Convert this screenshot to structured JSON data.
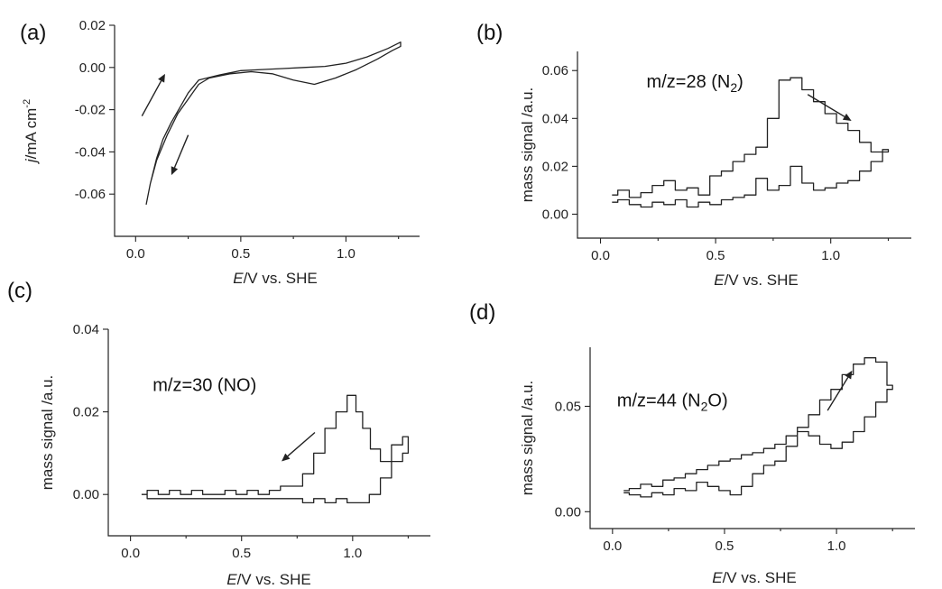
{
  "chart_data": [
    {
      "id": "a",
      "type": "line",
      "panel_label": "(a)",
      "title": "",
      "xlabel": "E/V vs. SHE",
      "ylabel": "j/mA cm-2",
      "xlim": [
        -0.1,
        1.35
      ],
      "ylim": [
        -0.08,
        0.02
      ],
      "xticks": [
        0.0,
        0.5,
        1.0
      ],
      "yticks": [
        0.02,
        0.0,
        -0.02,
        -0.04,
        -0.06
      ],
      "xtick_labels": [
        "0.0",
        "0.5",
        "1.0"
      ],
      "ytick_labels": [
        "0.02",
        "0.00",
        "-0.02",
        "-0.04",
        "-0.06"
      ],
      "annotation": "",
      "step": false,
      "series": [
        {
          "x": [
            0.05,
            0.07,
            0.1,
            0.13,
            0.17,
            0.21,
            0.25,
            0.3,
            0.4,
            0.5,
            0.6,
            0.7,
            0.8,
            0.9,
            1.0,
            1.1,
            1.2,
            1.26,
            1.26,
            1.22,
            1.15,
            1.05,
            0.95,
            0.85,
            0.75,
            0.65,
            0.55,
            0.45,
            0.35,
            0.3,
            0.25,
            0.2,
            0.15,
            0.1,
            0.07,
            0.05
          ],
          "y": [
            -0.065,
            -0.055,
            -0.043,
            -0.034,
            -0.026,
            -0.019,
            -0.012,
            -0.006,
            -0.0035,
            -0.0015,
            -0.001,
            -0.0005,
            0.0,
            0.0005,
            0.002,
            0.005,
            0.009,
            0.012,
            0.01,
            0.008,
            0.004,
            -0.001,
            -0.005,
            -0.008,
            -0.006,
            -0.003,
            -0.002,
            -0.003,
            -0.005,
            -0.008,
            -0.015,
            -0.022,
            -0.032,
            -0.044,
            -0.055,
            -0.065
          ]
        }
      ],
      "arrows": [
        {
          "from": [
            0.03,
            -0.023
          ],
          "to": [
            0.14,
            -0.003
          ]
        },
        {
          "from": [
            0.25,
            -0.032
          ],
          "to": [
            0.17,
            -0.051
          ]
        }
      ]
    },
    {
      "id": "b",
      "type": "line",
      "panel_label": "(b)",
      "title": "",
      "xlabel": "E/V vs. SHE",
      "ylabel": "mass signal /a.u.",
      "xlim": [
        -0.1,
        1.35
      ],
      "ylim": [
        -0.01,
        0.068
      ],
      "xticks": [
        0.0,
        0.5,
        1.0
      ],
      "yticks": [
        0.0,
        0.02,
        0.04,
        0.06
      ],
      "xtick_labels": [
        "0.0",
        "0.5",
        "1.0"
      ],
      "ytick_labels": [
        "0.00",
        "0.02",
        "0.04",
        "0.06"
      ],
      "annotation": "m/z=28 (N2)",
      "annotation_pos": [
        0.2,
        0.053
      ],
      "step": true,
      "series": [
        {
          "x": [
            0.05,
            0.1,
            0.15,
            0.2,
            0.25,
            0.3,
            0.35,
            0.4,
            0.45,
            0.5,
            0.55,
            0.6,
            0.65,
            0.7,
            0.75,
            0.8,
            0.85,
            0.9,
            0.95,
            1.0,
            1.05,
            1.1,
            1.15,
            1.2,
            1.25,
            1.25,
            1.2,
            1.15,
            1.1,
            1.05,
            1.0,
            0.95,
            0.9,
            0.85,
            0.8,
            0.75,
            0.7,
            0.65,
            0.6,
            0.55,
            0.5,
            0.45,
            0.4,
            0.35,
            0.3,
            0.25,
            0.2,
            0.15,
            0.1,
            0.05
          ],
          "y": [
            0.008,
            0.01,
            0.007,
            0.009,
            0.012,
            0.014,
            0.01,
            0.011,
            0.008,
            0.016,
            0.018,
            0.022,
            0.025,
            0.028,
            0.04,
            0.056,
            0.057,
            0.052,
            0.047,
            0.042,
            0.038,
            0.035,
            0.03,
            0.026,
            0.027,
            0.026,
            0.022,
            0.018,
            0.014,
            0.013,
            0.011,
            0.01,
            0.013,
            0.02,
            0.012,
            0.01,
            0.015,
            0.008,
            0.007,
            0.006,
            0.004,
            0.005,
            0.003,
            0.006,
            0.004,
            0.005,
            0.003,
            0.004,
            0.006,
            0.005
          ]
        }
      ],
      "arrows": [
        {
          "from": [
            0.9,
            0.05
          ],
          "to": [
            1.09,
            0.039
          ]
        }
      ]
    },
    {
      "id": "c",
      "type": "line",
      "panel_label": "(c)",
      "title": "",
      "xlabel": "E/V vs. SHE",
      "ylabel": "mass signal /a.u.",
      "xlim": [
        -0.1,
        1.35
      ],
      "ylim": [
        -0.01,
        0.04
      ],
      "xticks": [
        0.0,
        0.5,
        1.0
      ],
      "yticks": [
        0.0,
        0.02,
        0.04
      ],
      "xtick_labels": [
        "0.0",
        "0.5",
        "1.0"
      ],
      "ytick_labels": [
        "0.00",
        "0.02",
        "0.04"
      ],
      "annotation": "m/z=30 (NO)",
      "annotation_pos": [
        0.1,
        0.025
      ],
      "step": true,
      "series": [
        {
          "x": [
            0.05,
            0.1,
            0.15,
            0.2,
            0.25,
            0.3,
            0.35,
            0.4,
            0.45,
            0.5,
            0.55,
            0.6,
            0.65,
            0.7,
            0.75,
            0.8,
            0.85,
            0.9,
            0.95,
            1.0,
            1.03,
            1.06,
            1.1,
            1.15,
            1.2,
            1.25,
            1.25,
            1.2,
            1.15,
            1.1,
            1.05,
            1.0,
            0.95,
            0.9,
            0.85,
            0.8,
            0.75,
            0.7,
            0.65,
            0.6,
            0.55,
            0.5,
            0.45,
            0.4,
            0.35,
            0.3,
            0.25,
            0.2,
            0.15,
            0.1,
            0.05
          ],
          "y": [
            0.0,
            0.001,
            0.0,
            0.001,
            0.0,
            0.001,
            0.0,
            0.0,
            0.001,
            0.0,
            0.001,
            0.0,
            0.001,
            0.002,
            0.002,
            0.005,
            0.01,
            0.016,
            0.02,
            0.024,
            0.02,
            0.016,
            0.011,
            0.008,
            0.012,
            0.014,
            0.01,
            0.008,
            0.004,
            0.0,
            -0.002,
            -0.002,
            -0.001,
            -0.002,
            -0.001,
            -0.002,
            -0.001,
            -0.001,
            -0.001,
            -0.001,
            -0.001,
            -0.001,
            -0.001,
            -0.001,
            -0.001,
            -0.001,
            -0.001,
            -0.001,
            -0.001,
            -0.001,
            0.0
          ]
        }
      ],
      "arrows": [
        {
          "from": [
            0.83,
            0.015
          ],
          "to": [
            0.68,
            0.008
          ]
        }
      ]
    },
    {
      "id": "d",
      "type": "line",
      "panel_label": "(d)",
      "title": "",
      "xlabel": "E/V vs. SHE",
      "ylabel": "mass signal /a.u.",
      "xlim": [
        -0.1,
        1.35
      ],
      "ylim": [
        -0.008,
        0.078
      ],
      "xticks": [
        0.0,
        0.5,
        1.0
      ],
      "yticks": [
        0.0,
        0.05
      ],
      "xtick_labels": [
        "0.0",
        "0.5",
        "1.0"
      ],
      "ytick_labels": [
        "0.00",
        "0.05"
      ],
      "annotation": "m/z=44 (N2O)",
      "annotation_pos": [
        0.02,
        0.05
      ],
      "step": true,
      "series": [
        {
          "x": [
            0.05,
            0.1,
            0.15,
            0.2,
            0.25,
            0.3,
            0.35,
            0.4,
            0.45,
            0.5,
            0.55,
            0.6,
            0.65,
            0.7,
            0.75,
            0.8,
            0.85,
            0.9,
            0.95,
            1.0,
            1.05,
            1.1,
            1.15,
            1.2,
            1.25,
            1.25,
            1.2,
            1.15,
            1.1,
            1.05,
            1.0,
            0.95,
            0.9,
            0.85,
            0.8,
            0.75,
            0.7,
            0.65,
            0.6,
            0.55,
            0.5,
            0.45,
            0.4,
            0.35,
            0.3,
            0.25,
            0.2,
            0.15,
            0.1,
            0.05
          ],
          "y": [
            0.01,
            0.011,
            0.013,
            0.012,
            0.015,
            0.016,
            0.018,
            0.02,
            0.022,
            0.024,
            0.025,
            0.027,
            0.028,
            0.03,
            0.032,
            0.036,
            0.04,
            0.046,
            0.053,
            0.058,
            0.065,
            0.07,
            0.073,
            0.071,
            0.06,
            0.058,
            0.052,
            0.045,
            0.038,
            0.033,
            0.03,
            0.032,
            0.036,
            0.038,
            0.031,
            0.024,
            0.022,
            0.018,
            0.012,
            0.008,
            0.01,
            0.012,
            0.014,
            0.01,
            0.011,
            0.008,
            0.009,
            0.007,
            0.008,
            0.009
          ]
        }
      ],
      "arrows": [
        {
          "from": [
            0.96,
            0.048
          ],
          "to": [
            1.07,
            0.067
          ]
        }
      ]
    }
  ]
}
